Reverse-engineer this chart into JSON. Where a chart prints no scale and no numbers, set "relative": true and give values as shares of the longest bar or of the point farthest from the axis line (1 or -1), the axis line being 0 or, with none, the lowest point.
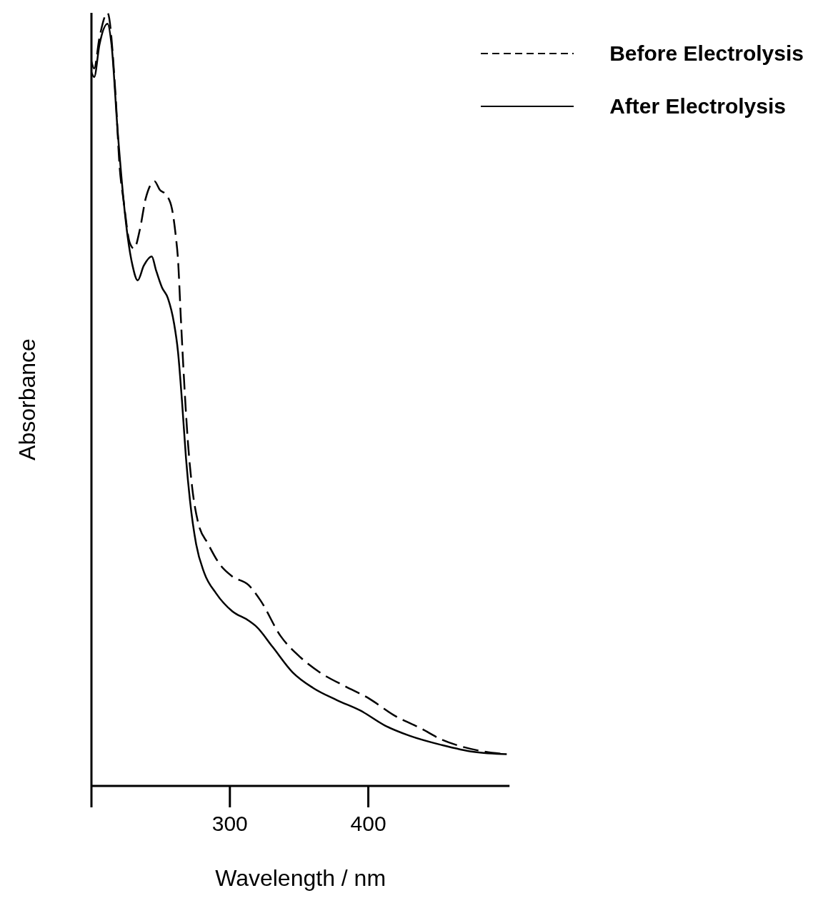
{
  "chart_data": {
    "type": "line",
    "xlabel": "Wavelength / nm",
    "ylabel": "Absorbance",
    "relative": true,
    "xlim": [
      200,
      502
    ],
    "xticks": [
      {
        "value": 200,
        "label": null
      },
      300,
      400
    ],
    "legend": "top right",
    "marker": "none",
    "series": [
      {
        "name": "Before Electrolysis",
        "color": "#000000",
        "line_style": "dashed",
        "x": [
          200,
          202.0,
          205.8,
          211.6,
          217.4,
          220.3,
          223.3,
          227.6,
          230.8,
          234.9,
          239.2,
          245.6,
          249.4,
          253.8,
          258.1,
          261.0,
          262.5,
          264.5,
          266.9,
          269.8,
          272.7,
          277.0,
          284.3,
          293.0,
          301.7,
          313.4,
          322.1,
          336.6,
          351.2,
          365.7,
          383.1,
          400.6,
          418.0,
          438.4,
          452.9,
          467.4,
          482.0,
          500
        ],
        "values": [
          0.937,
          0.928,
          0.968,
          1.0,
          0.894,
          0.802,
          0.756,
          0.703,
          0.695,
          0.719,
          0.76,
          0.782,
          0.771,
          0.765,
          0.747,
          0.71,
          0.682,
          0.608,
          0.525,
          0.442,
          0.387,
          0.341,
          0.313,
          0.286,
          0.271,
          0.26,
          0.24,
          0.194,
          0.166,
          0.146,
          0.129,
          0.113,
          0.092,
          0.074,
          0.06,
          0.051,
          0.045,
          0.041
        ]
      },
      {
        "name": "After Electrolysis",
        "color": "#000000",
        "line_style": "solid",
        "x": [
          200,
          202.0,
          205.8,
          211.6,
          214.5,
          218.9,
          223.3,
          226.2,
          229.7,
          233.4,
          237.8,
          243.6,
          246.5,
          250.9,
          255.2,
          259.6,
          262.5,
          265.4,
          268.3,
          271.2,
          275.6,
          281.4,
          290.1,
          301.7,
          313.4,
          319.2,
          330.8,
          345.3,
          359.9,
          377.3,
          394.8,
          412.2,
          429.7,
          452.9,
          476.2,
          500
        ],
        "values": [
          0.923,
          0.917,
          0.959,
          0.986,
          0.959,
          0.848,
          0.756,
          0.71,
          0.673,
          0.654,
          0.673,
          0.685,
          0.668,
          0.645,
          0.631,
          0.599,
          0.562,
          0.498,
          0.424,
          0.369,
          0.313,
          0.276,
          0.249,
          0.226,
          0.214,
          0.206,
          0.18,
          0.147,
          0.127,
          0.111,
          0.097,
          0.078,
          0.065,
          0.053,
          0.044,
          0.041
        ]
      }
    ]
  }
}
